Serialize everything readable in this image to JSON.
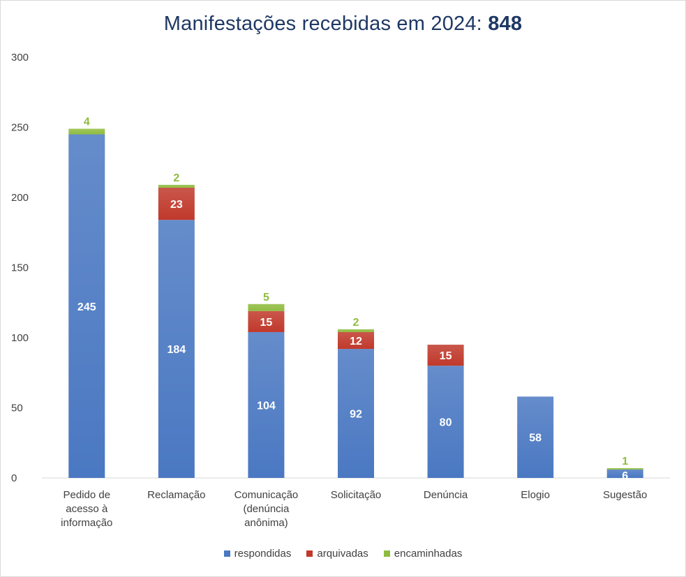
{
  "chart_data": {
    "type": "bar",
    "stacked": true,
    "title": "Manifestações recebidas em 2024:",
    "title_total": "848",
    "categories": [
      [
        "Pedido de",
        "acesso à",
        "informação"
      ],
      [
        "Reclamação"
      ],
      [
        "Comunicação",
        "(denúncia",
        "anônima)"
      ],
      [
        "Solicitação"
      ],
      [
        "Denúncia"
      ],
      [
        "Elogio"
      ],
      [
        "Sugestão"
      ]
    ],
    "series": [
      {
        "name": "respondidas",
        "color": "#4a78c2",
        "label_color": "#ffffff",
        "values": [
          245,
          184,
          104,
          92,
          80,
          58,
          6
        ]
      },
      {
        "name": "arquivadas",
        "color": "#c0392b",
        "label_color": "#ffffff",
        "values": [
          0,
          23,
          15,
          12,
          15,
          0,
          0
        ]
      },
      {
        "name": "encaminhadas",
        "color": "#8fbc3f",
        "label_color": "#8fbc3f",
        "values": [
          4,
          2,
          5,
          2,
          0,
          0,
          1
        ]
      }
    ],
    "ylim": [
      0,
      300
    ],
    "yticks": [
      0,
      50,
      100,
      150,
      200,
      250,
      300
    ],
    "grid": false,
    "legend_position": "bottom"
  }
}
